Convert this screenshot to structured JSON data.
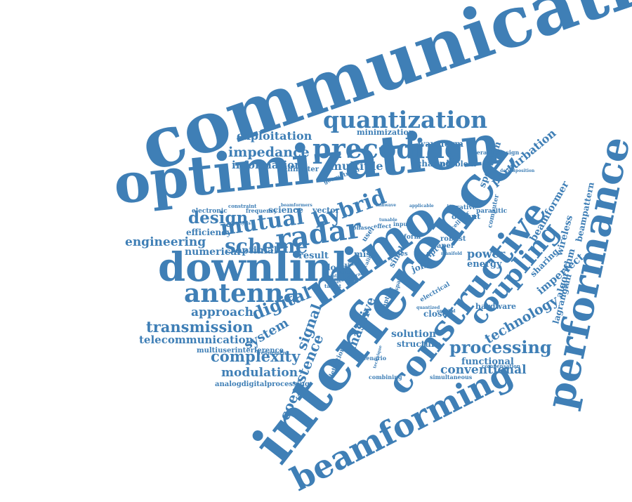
{
  "color": "#3f7fb6",
  "words": [
    {
      "text": "communication"
    },
    {
      "text": "optimization"
    },
    {
      "text": "interference"
    },
    {
      "text": "performance"
    },
    {
      "text": "beamforming"
    },
    {
      "text": "constructive"
    },
    {
      "text": "mimo"
    },
    {
      "text": "downlink"
    },
    {
      "text": "antenna"
    },
    {
      "text": "precoding"
    },
    {
      "text": "quantization"
    },
    {
      "text": "coupling"
    },
    {
      "text": "radar"
    },
    {
      "text": "mutual"
    },
    {
      "text": "hybrid"
    },
    {
      "text": "scheme"
    },
    {
      "text": "design"
    },
    {
      "text": "impedance"
    },
    {
      "text": "exploitation"
    },
    {
      "text": "information"
    },
    {
      "text": "multiple"
    },
    {
      "text": "engineering"
    },
    {
      "text": "digital"
    },
    {
      "text": "transmission"
    },
    {
      "text": "telecommunication"
    },
    {
      "text": "complexity"
    },
    {
      "text": "modulation"
    },
    {
      "text": "approach"
    },
    {
      "text": "processing"
    },
    {
      "text": "conventional"
    },
    {
      "text": "technology"
    },
    {
      "text": "coexistence"
    },
    {
      "text": "signal"
    },
    {
      "text": "system"
    },
    {
      "text": "massive"
    },
    {
      "text": "perturbation"
    },
    {
      "text": "spectrum"
    },
    {
      "text": "beamformer"
    },
    {
      "text": "imperfect"
    },
    {
      "text": "wireless"
    },
    {
      "text": "algorithm"
    },
    {
      "text": "beampattern"
    },
    {
      "text": "efficiency"
    },
    {
      "text": "numerical"
    },
    {
      "text": "optimal"
    },
    {
      "text": "science"
    },
    {
      "text": "vector"
    },
    {
      "text": "result"
    },
    {
      "text": "power"
    },
    {
      "text": "energy"
    },
    {
      "text": "sharing"
    },
    {
      "text": "lagrangian"
    },
    {
      "text": "solution"
    },
    {
      "text": "structure"
    },
    {
      "text": "functional"
    },
    {
      "text": "closed"
    },
    {
      "text": "hardware"
    },
    {
      "text": "waveform"
    },
    {
      "text": "channel"
    },
    {
      "text": "problem"
    },
    {
      "text": "millimeter"
    },
    {
      "text": "minimization"
    },
    {
      "text": "iterativedesign"
    },
    {
      "text": "electronic"
    },
    {
      "text": "frequency"
    },
    {
      "text": "multiuserinterference"
    },
    {
      "text": "analogdigitalprocessing"
    },
    {
      "text": "simultaneous"
    },
    {
      "text": "compensation"
    },
    {
      "text": "combining"
    },
    {
      "text": "scenario"
    },
    {
      "text": "detection"
    },
    {
      "text": "adaptive"
    },
    {
      "text": "output"
    },
    {
      "text": "parasitic"
    },
    {
      "text": "iterative"
    },
    {
      "text": "robust"
    },
    {
      "text": "cellular"
    },
    {
      "text": "paper"
    },
    {
      "text": "swipt"
    },
    {
      "text": "joint"
    },
    {
      "text": "single"
    },
    {
      "text": "load"
    },
    {
      "text": "miso"
    },
    {
      "text": "dacs"
    },
    {
      "text": "computer"
    },
    {
      "text": "form"
    },
    {
      "text": "effect"
    },
    {
      "text": "input"
    },
    {
      "text": "phase"
    },
    {
      "text": "user"
    },
    {
      "text": "geometrical"
    },
    {
      "text": "constraint"
    },
    {
      "text": "refinement"
    },
    {
      "text": "electrical"
    },
    {
      "text": "espar"
    },
    {
      "text": "quantized"
    },
    {
      "text": "technique"
    },
    {
      "text": "enabled"
    },
    {
      "text": "analysis"
    },
    {
      "text": "tunable"
    },
    {
      "text": "applicable"
    },
    {
      "text": "scaling"
    },
    {
      "text": "beamformers"
    },
    {
      "text": "mmwave"
    },
    {
      "text": "decomposition"
    },
    {
      "text": "manifold"
    },
    {
      "text": "reconfigurable"
    },
    {
      "text": "target"
    },
    {
      "text": "radio"
    },
    {
      "text": "variety"
    },
    {
      "text": "error"
    },
    {
      "text": "rate"
    }
  ]
}
